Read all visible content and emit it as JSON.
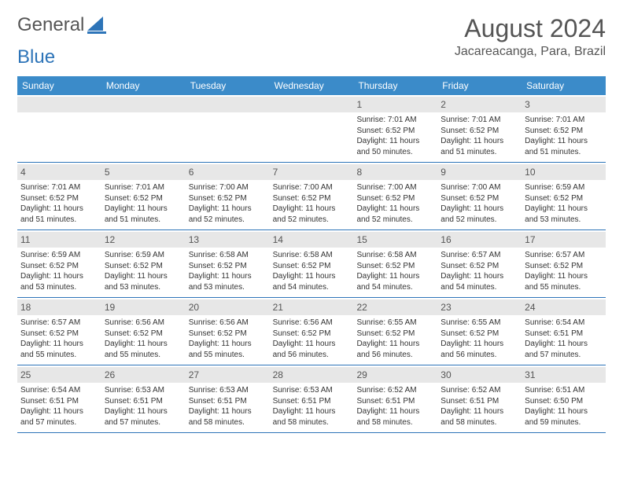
{
  "logo": {
    "part1": "General",
    "part2": "Blue"
  },
  "header": {
    "title": "August 2024",
    "location": "Jacareacanga, Para, Brazil"
  },
  "calendar": {
    "weekday_header_bg": "#3b8bc9",
    "weekday_header_fg": "#ffffff",
    "daynum_bg": "#e7e7e7",
    "border_color": "#2d74b8",
    "weekdays": [
      "Sunday",
      "Monday",
      "Tuesday",
      "Wednesday",
      "Thursday",
      "Friday",
      "Saturday"
    ],
    "weeks": [
      [
        {
          "day": "",
          "lines": []
        },
        {
          "day": "",
          "lines": []
        },
        {
          "day": "",
          "lines": []
        },
        {
          "day": "",
          "lines": []
        },
        {
          "day": "1",
          "lines": [
            "Sunrise: 7:01 AM",
            "Sunset: 6:52 PM",
            "Daylight: 11 hours and 50 minutes."
          ]
        },
        {
          "day": "2",
          "lines": [
            "Sunrise: 7:01 AM",
            "Sunset: 6:52 PM",
            "Daylight: 11 hours and 51 minutes."
          ]
        },
        {
          "day": "3",
          "lines": [
            "Sunrise: 7:01 AM",
            "Sunset: 6:52 PM",
            "Daylight: 11 hours and 51 minutes."
          ]
        }
      ],
      [
        {
          "day": "4",
          "lines": [
            "Sunrise: 7:01 AM",
            "Sunset: 6:52 PM",
            "Daylight: 11 hours and 51 minutes."
          ]
        },
        {
          "day": "5",
          "lines": [
            "Sunrise: 7:01 AM",
            "Sunset: 6:52 PM",
            "Daylight: 11 hours and 51 minutes."
          ]
        },
        {
          "day": "6",
          "lines": [
            "Sunrise: 7:00 AM",
            "Sunset: 6:52 PM",
            "Daylight: 11 hours and 52 minutes."
          ]
        },
        {
          "day": "7",
          "lines": [
            "Sunrise: 7:00 AM",
            "Sunset: 6:52 PM",
            "Daylight: 11 hours and 52 minutes."
          ]
        },
        {
          "day": "8",
          "lines": [
            "Sunrise: 7:00 AM",
            "Sunset: 6:52 PM",
            "Daylight: 11 hours and 52 minutes."
          ]
        },
        {
          "day": "9",
          "lines": [
            "Sunrise: 7:00 AM",
            "Sunset: 6:52 PM",
            "Daylight: 11 hours and 52 minutes."
          ]
        },
        {
          "day": "10",
          "lines": [
            "Sunrise: 6:59 AM",
            "Sunset: 6:52 PM",
            "Daylight: 11 hours and 53 minutes."
          ]
        }
      ],
      [
        {
          "day": "11",
          "lines": [
            "Sunrise: 6:59 AM",
            "Sunset: 6:52 PM",
            "Daylight: 11 hours and 53 minutes."
          ]
        },
        {
          "day": "12",
          "lines": [
            "Sunrise: 6:59 AM",
            "Sunset: 6:52 PM",
            "Daylight: 11 hours and 53 minutes."
          ]
        },
        {
          "day": "13",
          "lines": [
            "Sunrise: 6:58 AM",
            "Sunset: 6:52 PM",
            "Daylight: 11 hours and 53 minutes."
          ]
        },
        {
          "day": "14",
          "lines": [
            "Sunrise: 6:58 AM",
            "Sunset: 6:52 PM",
            "Daylight: 11 hours and 54 minutes."
          ]
        },
        {
          "day": "15",
          "lines": [
            "Sunrise: 6:58 AM",
            "Sunset: 6:52 PM",
            "Daylight: 11 hours and 54 minutes."
          ]
        },
        {
          "day": "16",
          "lines": [
            "Sunrise: 6:57 AM",
            "Sunset: 6:52 PM",
            "Daylight: 11 hours and 54 minutes."
          ]
        },
        {
          "day": "17",
          "lines": [
            "Sunrise: 6:57 AM",
            "Sunset: 6:52 PM",
            "Daylight: 11 hours and 55 minutes."
          ]
        }
      ],
      [
        {
          "day": "18",
          "lines": [
            "Sunrise: 6:57 AM",
            "Sunset: 6:52 PM",
            "Daylight: 11 hours and 55 minutes."
          ]
        },
        {
          "day": "19",
          "lines": [
            "Sunrise: 6:56 AM",
            "Sunset: 6:52 PM",
            "Daylight: 11 hours and 55 minutes."
          ]
        },
        {
          "day": "20",
          "lines": [
            "Sunrise: 6:56 AM",
            "Sunset: 6:52 PM",
            "Daylight: 11 hours and 55 minutes."
          ]
        },
        {
          "day": "21",
          "lines": [
            "Sunrise: 6:56 AM",
            "Sunset: 6:52 PM",
            "Daylight: 11 hours and 56 minutes."
          ]
        },
        {
          "day": "22",
          "lines": [
            "Sunrise: 6:55 AM",
            "Sunset: 6:52 PM",
            "Daylight: 11 hours and 56 minutes."
          ]
        },
        {
          "day": "23",
          "lines": [
            "Sunrise: 6:55 AM",
            "Sunset: 6:52 PM",
            "Daylight: 11 hours and 56 minutes."
          ]
        },
        {
          "day": "24",
          "lines": [
            "Sunrise: 6:54 AM",
            "Sunset: 6:51 PM",
            "Daylight: 11 hours and 57 minutes."
          ]
        }
      ],
      [
        {
          "day": "25",
          "lines": [
            "Sunrise: 6:54 AM",
            "Sunset: 6:51 PM",
            "Daylight: 11 hours and 57 minutes."
          ]
        },
        {
          "day": "26",
          "lines": [
            "Sunrise: 6:53 AM",
            "Sunset: 6:51 PM",
            "Daylight: 11 hours and 57 minutes."
          ]
        },
        {
          "day": "27",
          "lines": [
            "Sunrise: 6:53 AM",
            "Sunset: 6:51 PM",
            "Daylight: 11 hours and 58 minutes."
          ]
        },
        {
          "day": "28",
          "lines": [
            "Sunrise: 6:53 AM",
            "Sunset: 6:51 PM",
            "Daylight: 11 hours and 58 minutes."
          ]
        },
        {
          "day": "29",
          "lines": [
            "Sunrise: 6:52 AM",
            "Sunset: 6:51 PM",
            "Daylight: 11 hours and 58 minutes."
          ]
        },
        {
          "day": "30",
          "lines": [
            "Sunrise: 6:52 AM",
            "Sunset: 6:51 PM",
            "Daylight: 11 hours and 58 minutes."
          ]
        },
        {
          "day": "31",
          "lines": [
            "Sunrise: 6:51 AM",
            "Sunset: 6:50 PM",
            "Daylight: 11 hours and 59 minutes."
          ]
        }
      ]
    ]
  }
}
